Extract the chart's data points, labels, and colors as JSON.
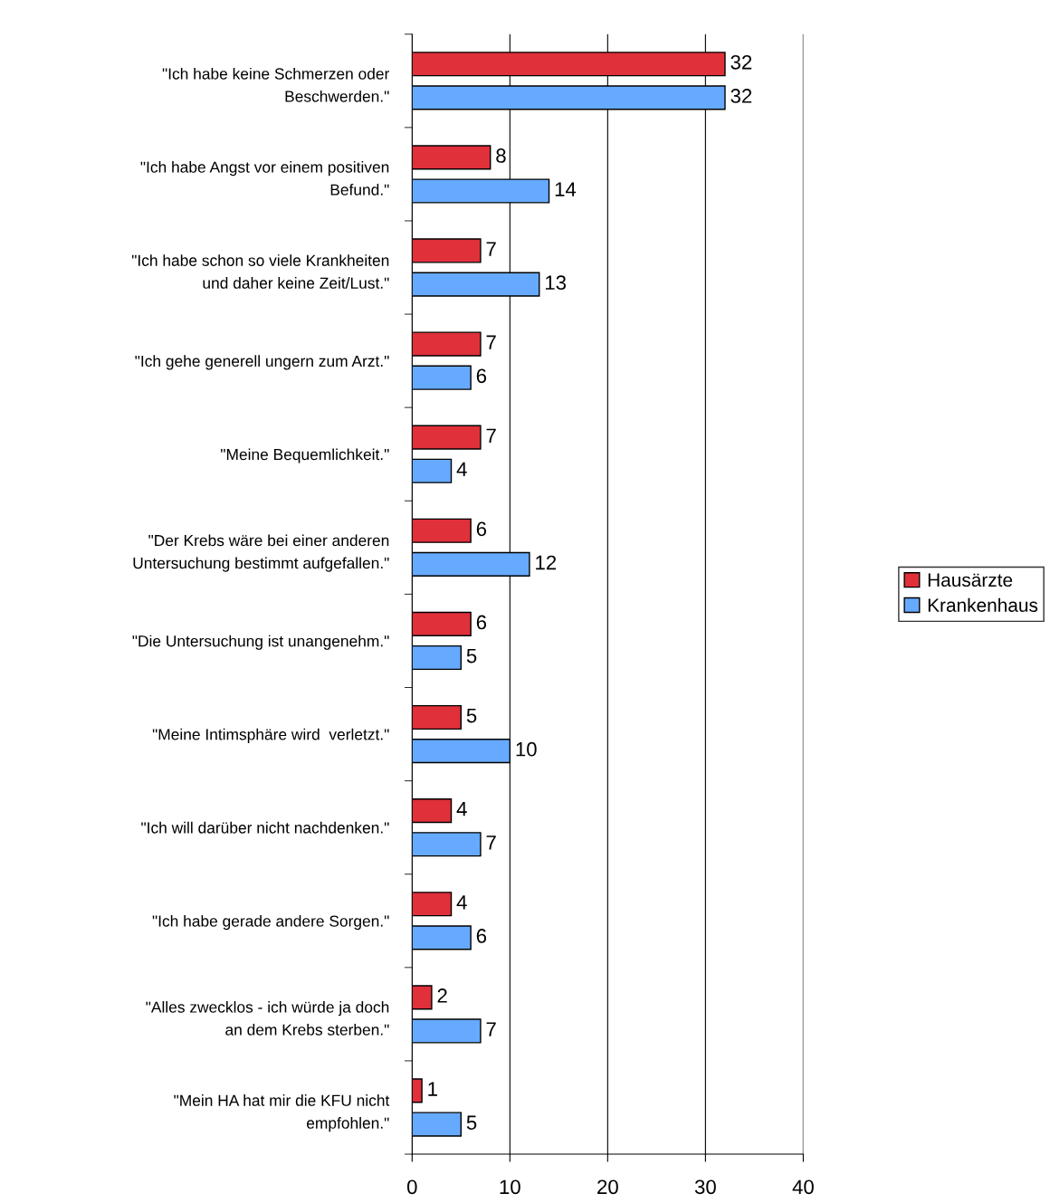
{
  "chart_data": {
    "type": "bar",
    "orientation": "horizontal",
    "categories": [
      "\"Ich habe keine Schmerzen oder\nBeschwerden.\"",
      "\"Ich habe Angst vor einem positiven\nBefund.\"",
      "\"Ich habe schon so viele Krankheiten\nund daher keine Zeit/Lust.\"",
      "\"Ich gehe generell ungern zum Arzt.\"",
      "\"Meine Bequemlichkeit.\"",
      "\"Der Krebs wäre bei einer anderen\nUntersuchung bestimmt aufgefallen.\"",
      "\"Die Untersuchung ist unangenehm.\"",
      "\"Meine Intimsphäre wird  verletzt.\"",
      "\"Ich will darüber nicht nachdenken.\"",
      "\"Ich habe gerade andere Sorgen.\"",
      "\"Alles zwecklos - ich würde ja doch\nan dem Krebs sterben.\"",
      "\"Mein HA hat mir die KFU nicht\nempfohlen.\""
    ],
    "series": [
      {
        "name": "Hausärzte",
        "color": "#e0303a",
        "values": [
          32,
          8,
          7,
          7,
          7,
          6,
          6,
          5,
          4,
          4,
          2,
          1
        ]
      },
      {
        "name": "Krankenhaus",
        "color": "#66aaff",
        "values": [
          32,
          14,
          13,
          6,
          4,
          12,
          5,
          10,
          7,
          6,
          7,
          5
        ]
      }
    ],
    "xlim": [
      0,
      40
    ],
    "xticks": [
      0,
      10,
      20,
      30,
      40
    ],
    "grid": "x",
    "legend": "right",
    "data_labels": true
  }
}
